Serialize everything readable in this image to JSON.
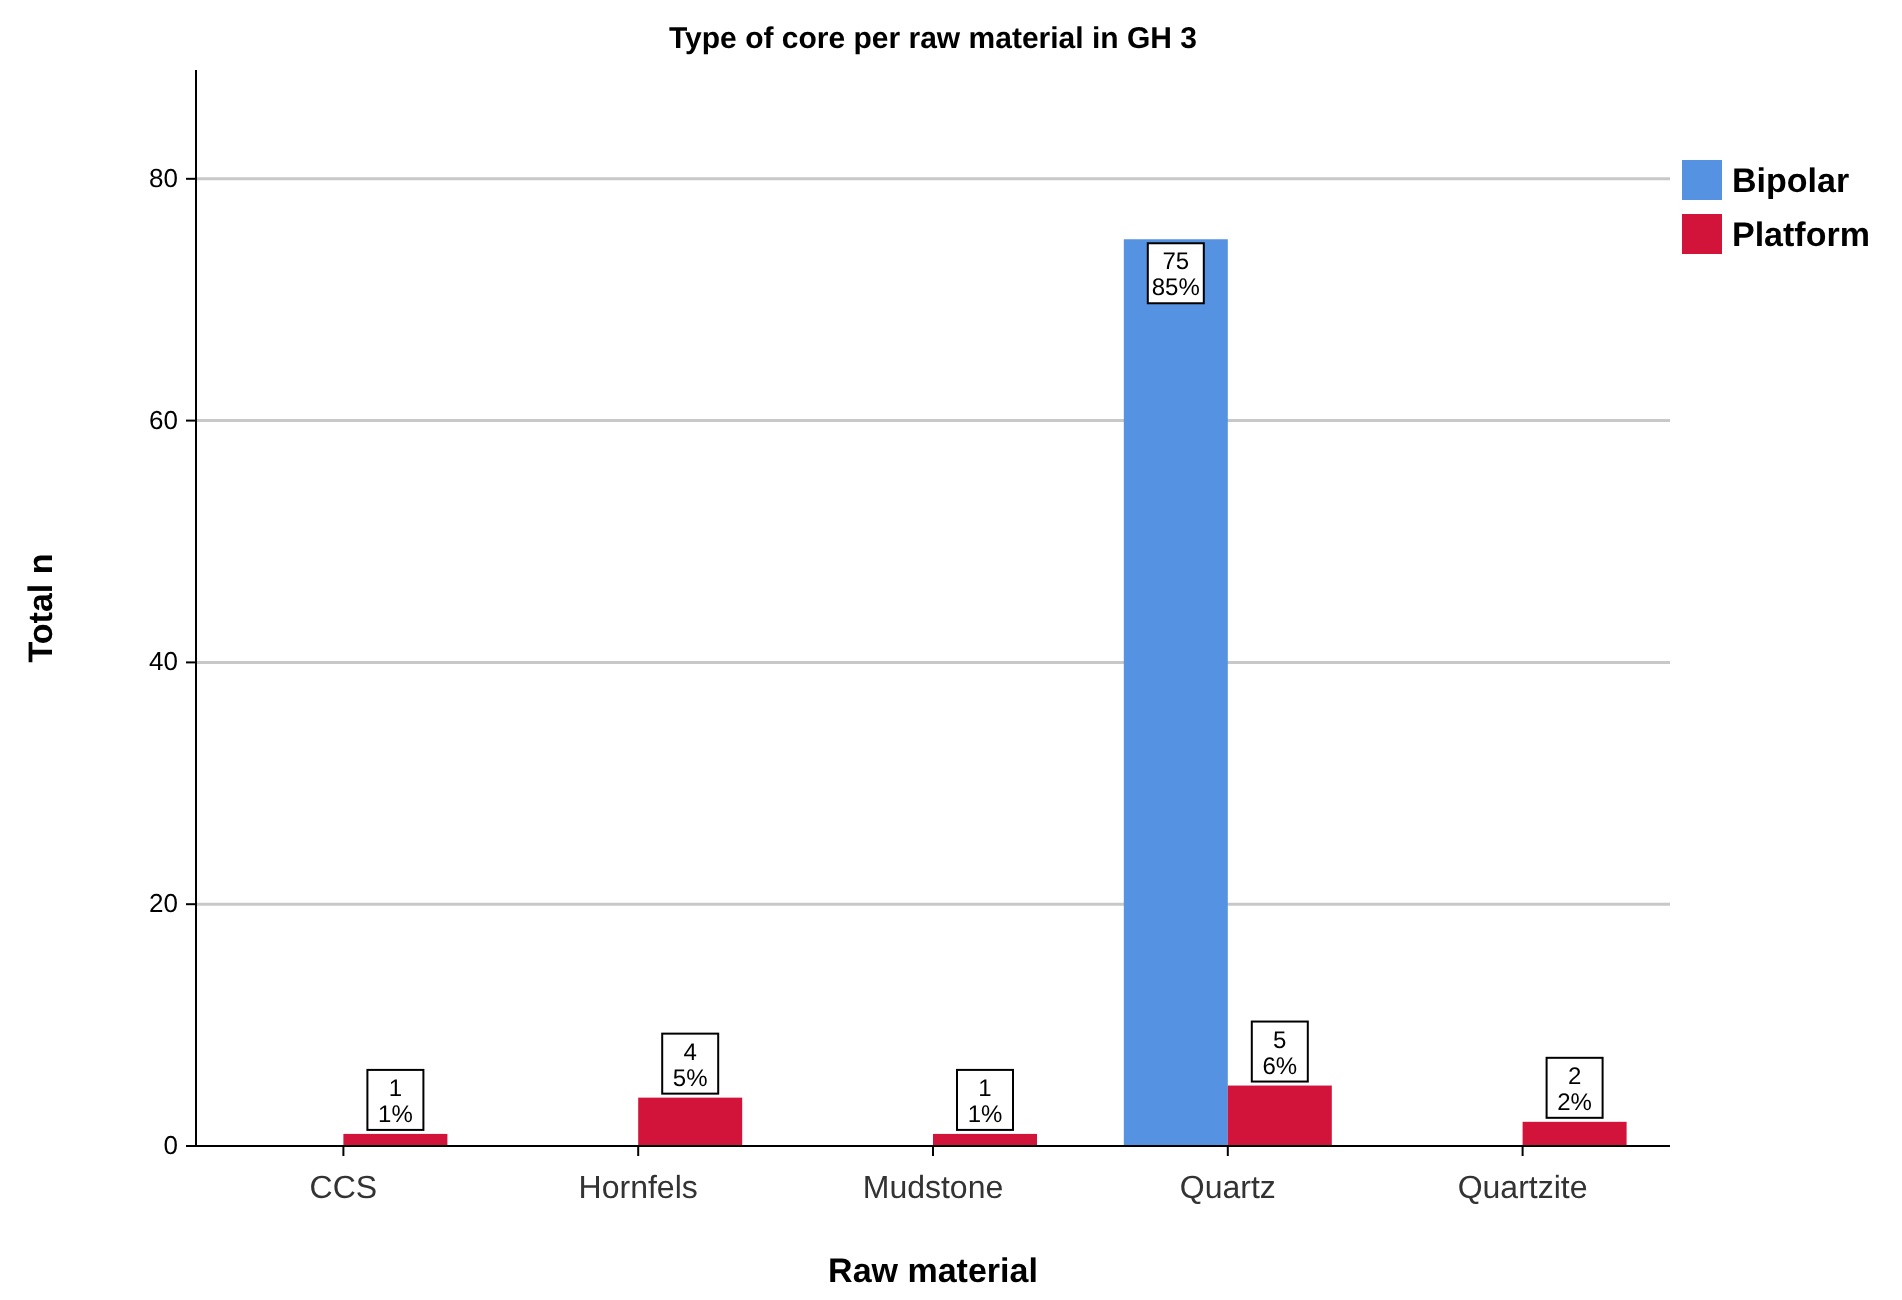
{
  "chart_data": {
    "type": "bar",
    "title": "Type of core per raw material in GH 3",
    "xlabel": "Raw material",
    "ylabel": "Total n",
    "categories": [
      "CCS",
      "Hornfels",
      "Mudstone",
      "Quartz",
      "Quartzite"
    ],
    "series": [
      {
        "name": "Bipolar",
        "color": "#5592e2",
        "values": [
          null,
          null,
          null,
          75,
          null
        ],
        "value_labels": [
          null,
          null,
          null,
          "75\n85%",
          null
        ]
      },
      {
        "name": "Platform",
        "color": "#d2143a",
        "values": [
          1,
          4,
          1,
          5,
          2
        ],
        "value_labels": [
          "1\n1%",
          "4\n5%",
          "1\n1%",
          "5\n6%",
          "2\n2%"
        ]
      }
    ],
    "ylim": [
      0,
      89
    ],
    "yticks": [
      0,
      20,
      40,
      60,
      80
    ],
    "grid": "y",
    "legend": "top right"
  }
}
